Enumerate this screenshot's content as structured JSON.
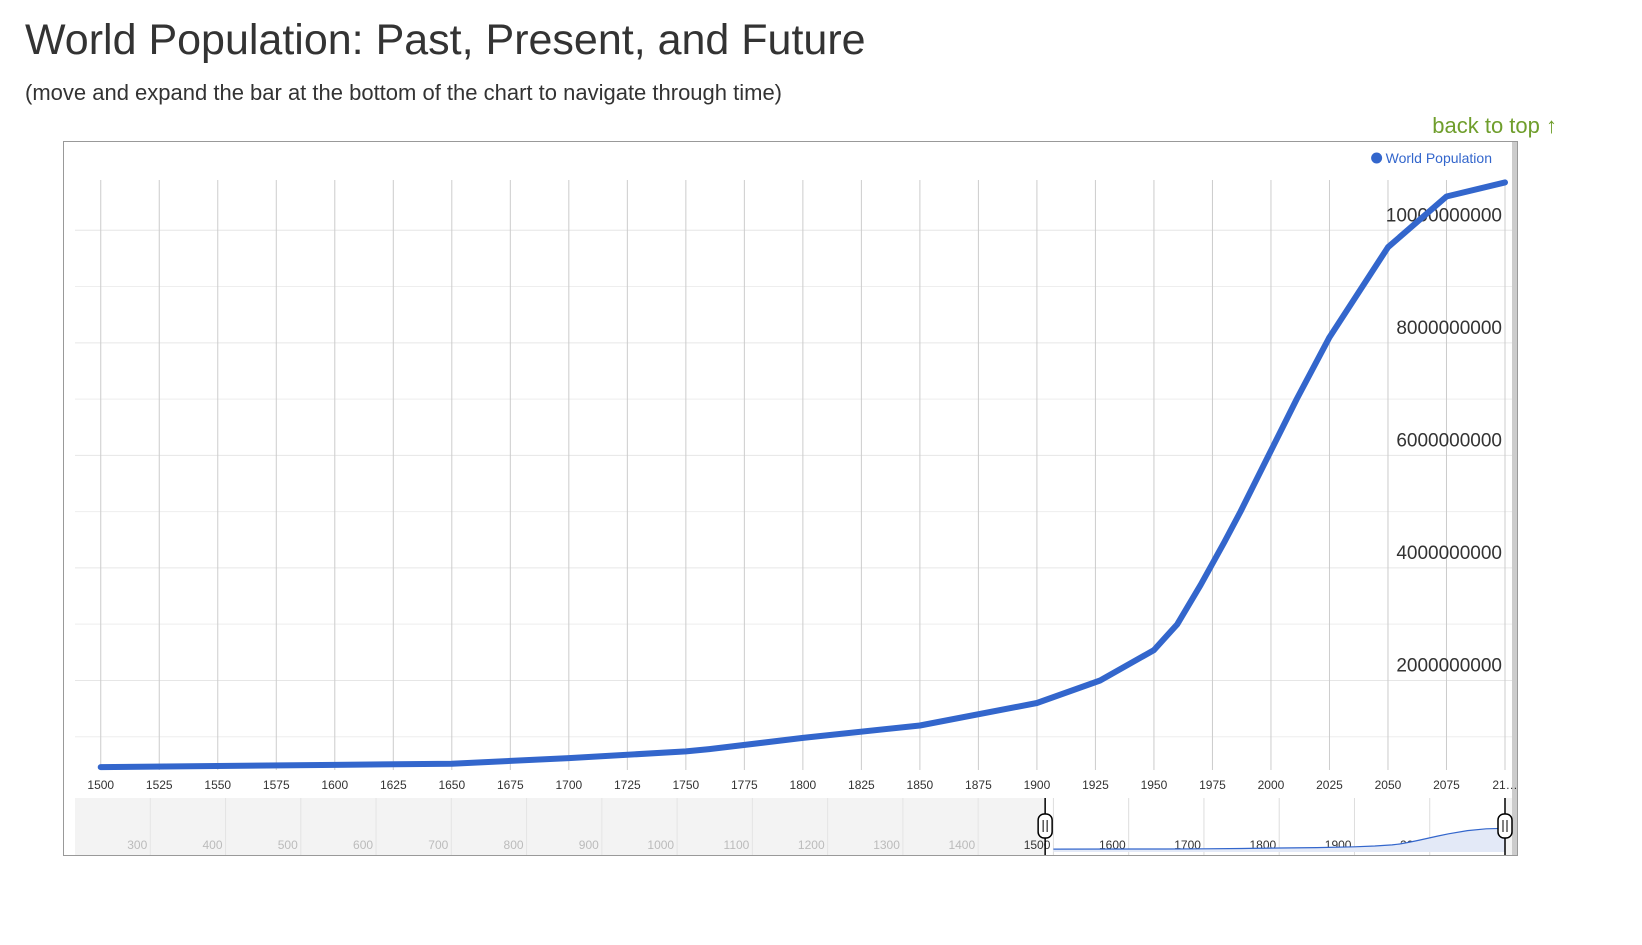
{
  "title": "World Population: Past, Present, and Future",
  "subtitle": "(move and expand the bar at the bottom of the chart to navigate through time)",
  "back_to_top": "back to top ↑",
  "chart_data": {
    "type": "line",
    "x": [
      1500,
      1600,
      1650,
      1700,
      1750,
      1760,
      1800,
      1850,
      1900,
      1927,
      1950,
      1960,
      1970,
      1980,
      1987,
      1999,
      2011,
      2025,
      2050,
      2075,
      2100
    ],
    "series": [
      {
        "name": "World Population",
        "color": "#3366cc",
        "values": [
          460000000,
          500000000,
          520000000,
          620000000,
          740000000,
          780000000,
          980000000,
          1200000000,
          1600000000,
          2000000000,
          2540000000,
          3000000000,
          3700000000,
          4450000000,
          5000000000,
          6000000000,
          7000000000,
          8100000000,
          9700000000,
          10600000000,
          10850000000
        ]
      }
    ],
    "xlim": [
      1489,
      2100
    ],
    "xticks": [
      1500,
      1525,
      1550,
      1575,
      1600,
      1625,
      1650,
      1675,
      1700,
      1725,
      1750,
      1775,
      1800,
      1825,
      1850,
      1875,
      1900,
      1925,
      1950,
      1975,
      2000,
      2025,
      2050,
      2075,
      {
        "value": 2100,
        "label": "21…"
      }
    ],
    "ylim": [
      0,
      11000000000
    ],
    "yticks": [
      2000000000,
      4000000000,
      6000000000,
      8000000000,
      10000000000
    ],
    "minor_yticks": [
      1000000000,
      3000000000,
      5000000000,
      7000000000,
      9000000000
    ],
    "grid": true,
    "legend": "top-right",
    "navigator": {
      "xlim": [
        200,
        2100
      ],
      "xticks": [
        300,
        400,
        500,
        600,
        700,
        800,
        900,
        1000,
        1100,
        1200,
        1300,
        1400,
        1500,
        1600,
        1700,
        1800,
        1900,
        2000,
        {
          "value": 2100,
          "label": "21…"
        }
      ]
    }
  }
}
